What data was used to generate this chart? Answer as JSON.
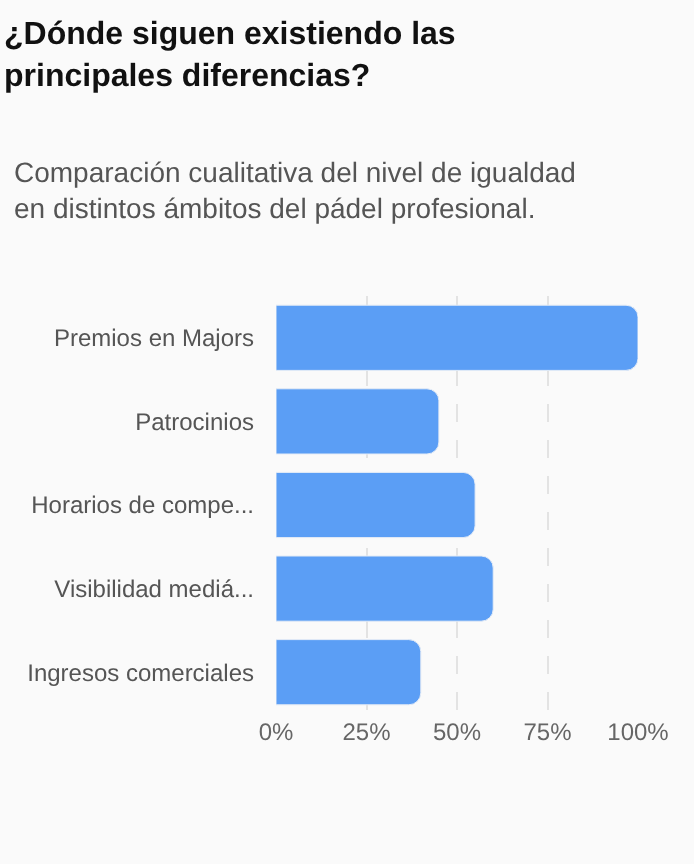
{
  "chart_data": {
    "type": "bar",
    "orientation": "horizontal",
    "title": "¿Dónde siguen existiendo las\nprincipales diferencias?",
    "subtitle": "Comparación cualitativa del nivel de igualdad\nen distintos ámbitos del pádel profesional.",
    "categories": [
      "Premios en Majors",
      "Patrocinios",
      "Horarios de compe...",
      "Visibilidad mediá...",
      "Ingresos comerciales"
    ],
    "values": [
      100,
      45,
      55,
      60,
      40
    ],
    "color": "#5b9ef5",
    "xlim": [
      0,
      100
    ],
    "xticks": [
      {
        "value": 0,
        "label": "0%"
      },
      {
        "value": 25,
        "label": "25%"
      },
      {
        "value": 50,
        "label": "50%"
      },
      {
        "value": 75,
        "label": "75%"
      },
      {
        "value": 100,
        "label": "100%"
      }
    ],
    "grid": "x",
    "legend": false
  }
}
